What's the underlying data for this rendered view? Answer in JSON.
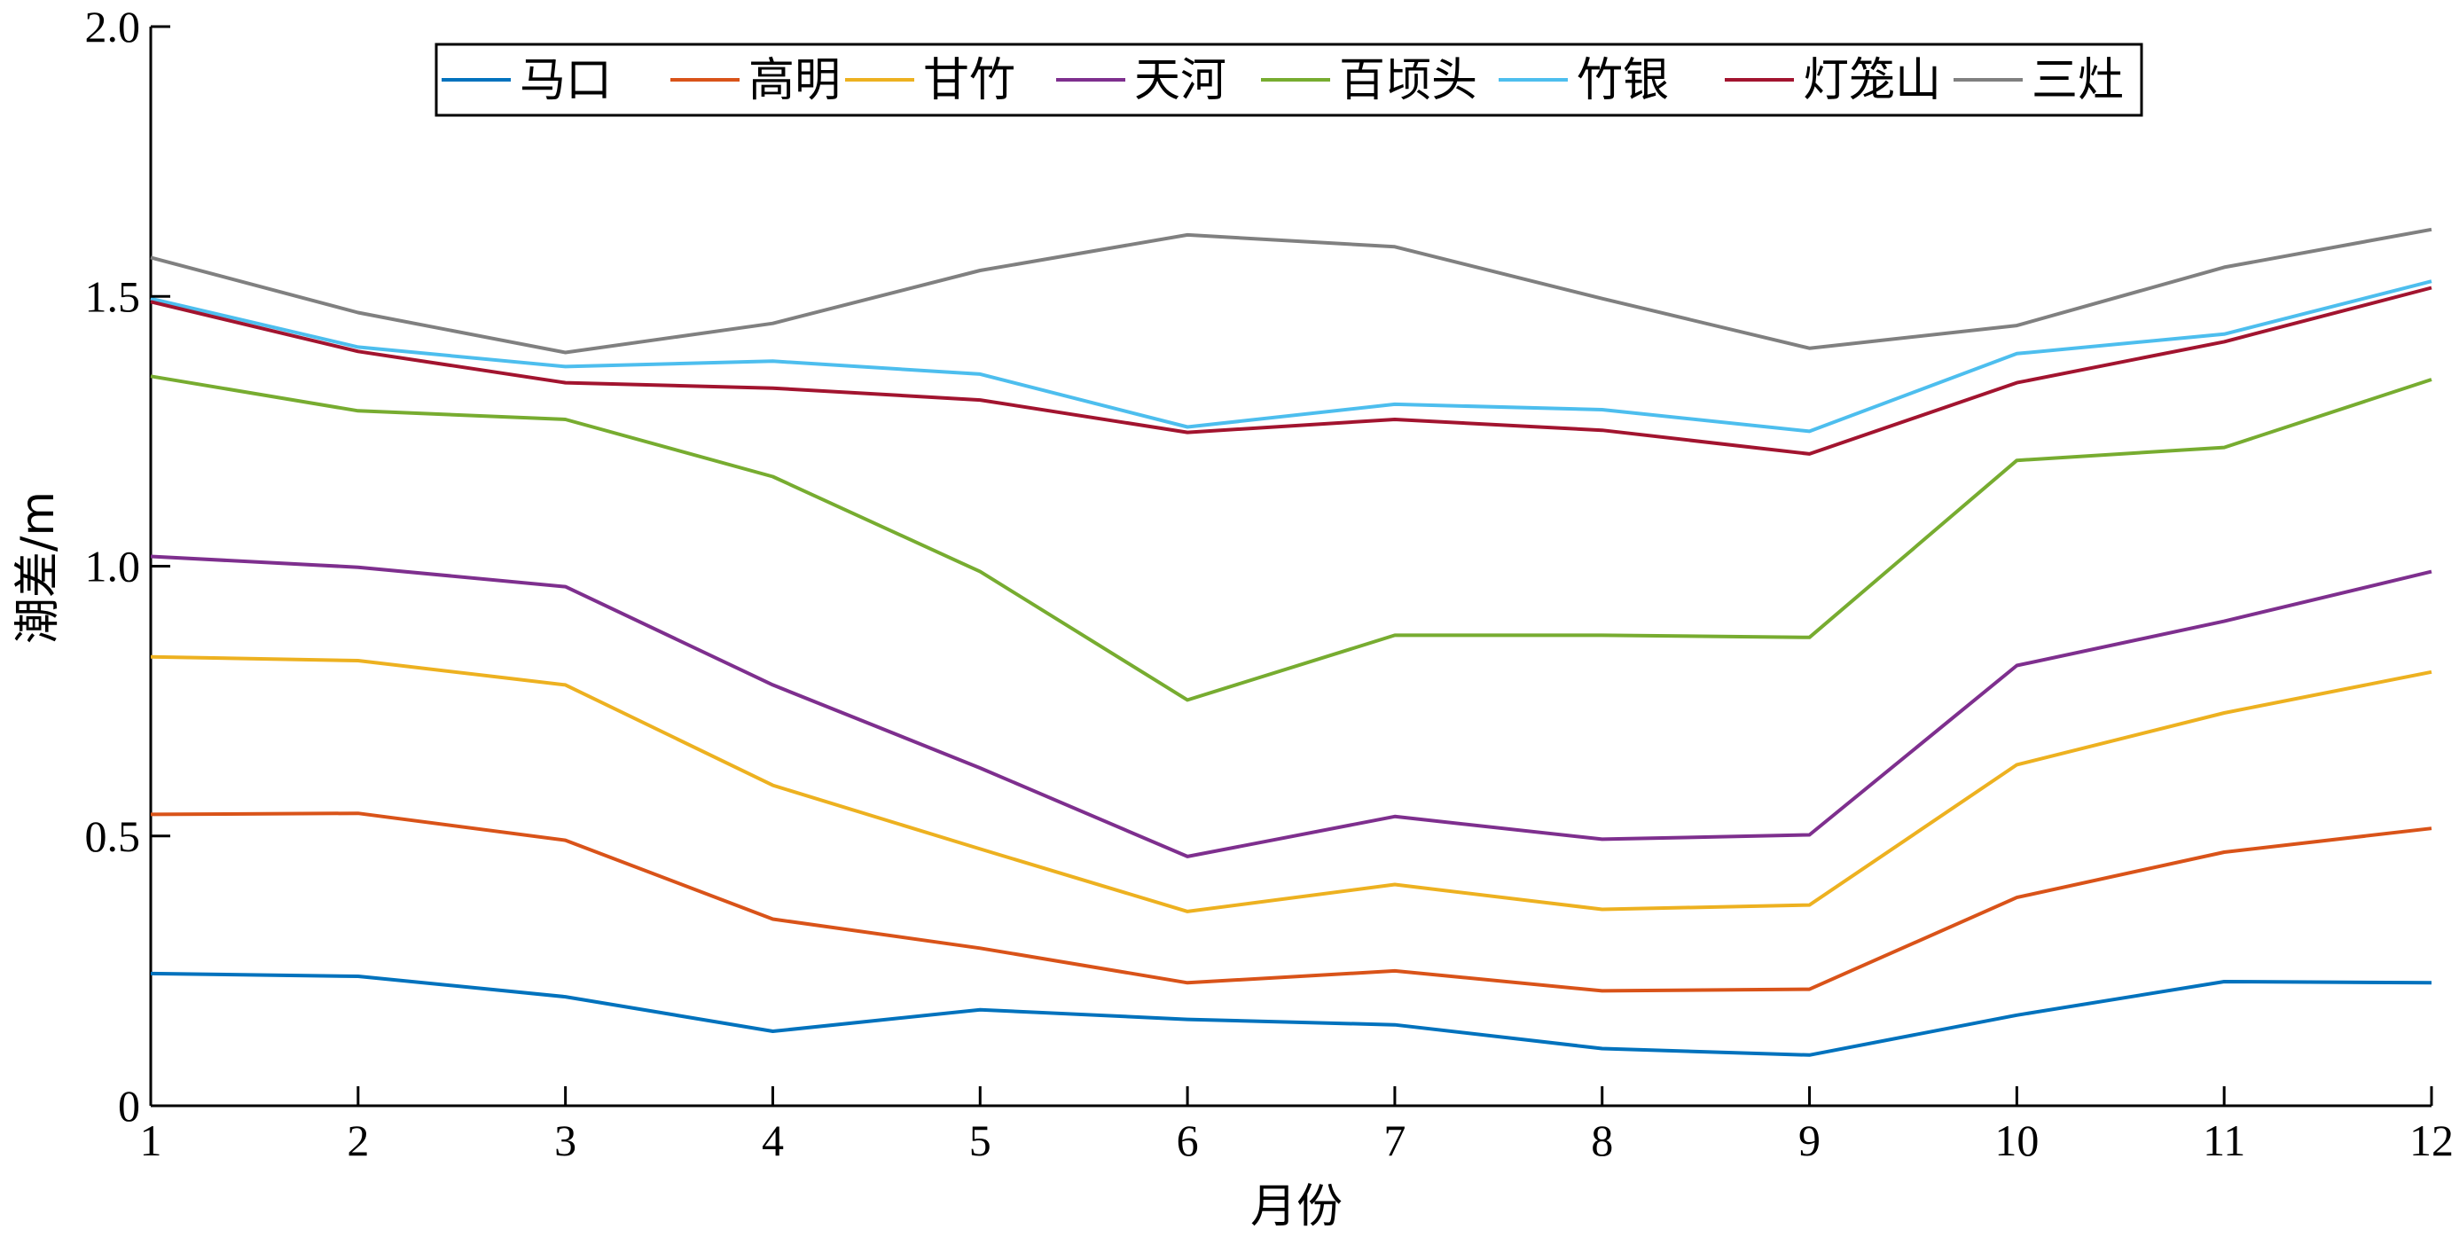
{
  "chart_data": {
    "type": "line",
    "x": [
      1,
      2,
      3,
      4,
      5,
      6,
      7,
      8,
      9,
      10,
      11,
      12
    ],
    "xlabel": "月份",
    "ylabel": "潮差/m",
    "xlim": [
      1,
      12
    ],
    "ylim": [
      0,
      2.0
    ],
    "xticks": [
      "1",
      "2",
      "3",
      "4",
      "5",
      "6",
      "7",
      "8",
      "9",
      "10",
      "11",
      "12"
    ],
    "yticks": [
      "0",
      "0.5",
      "1.0",
      "1.5",
      "2.0"
    ],
    "grid": false,
    "legend_position": "top",
    "series": [
      {
        "name": "马口",
        "color": "#0072BD",
        "values": [
          0.245,
          0.24,
          0.202,
          0.138,
          0.178,
          0.16,
          0.15,
          0.106,
          0.094,
          0.168,
          0.23,
          0.228
        ]
      },
      {
        "name": "高明",
        "color": "#D95319",
        "values": [
          0.54,
          0.542,
          0.492,
          0.346,
          0.292,
          0.228,
          0.25,
          0.213,
          0.216,
          0.386,
          0.47,
          0.514
        ]
      },
      {
        "name": "甘竹",
        "color": "#EDB120",
        "values": [
          0.832,
          0.825,
          0.78,
          0.594,
          0.476,
          0.36,
          0.41,
          0.364,
          0.372,
          0.632,
          0.728,
          0.804
        ]
      },
      {
        "name": "天河",
        "color": "#7E2F8E",
        "values": [
          1.018,
          0.998,
          0.962,
          0.78,
          0.626,
          0.462,
          0.536,
          0.494,
          0.502,
          0.816,
          0.898,
          0.99
        ]
      },
      {
        "name": "百顷头",
        "color": "#77AC30",
        "values": [
          1.352,
          1.288,
          1.272,
          1.166,
          0.99,
          0.752,
          0.872,
          0.872,
          0.868,
          1.196,
          1.22,
          1.346
        ]
      },
      {
        "name": "竹银",
        "color": "#4DBEEE",
        "values": [
          1.496,
          1.406,
          1.37,
          1.38,
          1.356,
          1.258,
          1.3,
          1.29,
          1.25,
          1.394,
          1.43,
          1.528
        ]
      },
      {
        "name": "灯笼山",
        "color": "#A2142F",
        "values": [
          1.49,
          1.398,
          1.34,
          1.33,
          1.308,
          1.248,
          1.272,
          1.252,
          1.208,
          1.34,
          1.416,
          1.516
        ]
      },
      {
        "name": "三灶",
        "color": "#808080",
        "values": [
          1.572,
          1.47,
          1.396,
          1.45,
          1.548,
          1.614,
          1.592,
          1.496,
          1.404,
          1.446,
          1.554,
          1.624
        ]
      }
    ]
  }
}
